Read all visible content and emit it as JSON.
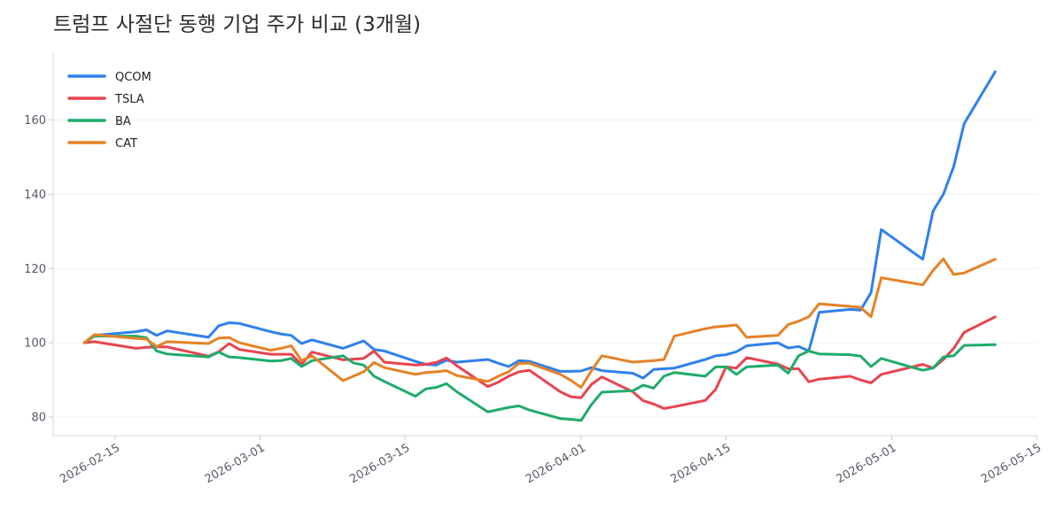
{
  "chart_data": {
    "type": "line",
    "title": "트럼프 사절단 동행 기업 주가 비교 (3개월)",
    "xlabel": "",
    "ylabel": "",
    "x_range": [
      "2026-02-09",
      "2026-05-15"
    ],
    "ylim": [
      75,
      178
    ],
    "yticks": [
      80,
      100,
      120,
      140,
      160
    ],
    "xticks": [
      "2026-02-15",
      "2026-03-01",
      "2026-03-15",
      "2026-04-01",
      "2026-04-15",
      "2026-05-01",
      "2026-05-15"
    ],
    "grid": "horizontal",
    "legend_position": "top-left",
    "series": [
      {
        "name": "QCOM",
        "color": "#2f80ed",
        "points": [
          [
            "2026-02-12",
            100.0
          ],
          [
            "2026-02-13",
            102.0
          ],
          [
            "2026-02-17",
            103.0
          ],
          [
            "2026-02-18",
            103.5
          ],
          [
            "2026-02-19",
            102.0
          ],
          [
            "2026-02-20",
            103.2
          ],
          [
            "2026-02-24",
            101.5
          ],
          [
            "2026-02-25",
            104.6
          ],
          [
            "2026-02-26",
            105.4
          ],
          [
            "2026-02-27",
            105.2
          ],
          [
            "2026-03-02",
            103.0
          ],
          [
            "2026-03-03",
            102.4
          ],
          [
            "2026-03-04",
            102.0
          ],
          [
            "2026-03-05",
            99.8
          ],
          [
            "2026-03-06",
            100.8
          ],
          [
            "2026-03-09",
            98.5
          ],
          [
            "2026-03-10",
            99.5
          ],
          [
            "2026-03-11",
            100.5
          ],
          [
            "2026-03-12",
            98.2
          ],
          [
            "2026-03-13",
            97.8
          ],
          [
            "2026-03-16",
            95.0
          ],
          [
            "2026-03-17",
            94.2
          ],
          [
            "2026-03-18",
            94.0
          ],
          [
            "2026-03-19",
            95.3
          ],
          [
            "2026-03-20",
            94.8
          ],
          [
            "2026-03-23",
            95.5
          ],
          [
            "2026-03-24",
            94.5
          ],
          [
            "2026-03-25",
            93.6
          ],
          [
            "2026-03-26",
            95.2
          ],
          [
            "2026-03-27",
            95.0
          ],
          [
            "2026-03-30",
            92.3
          ],
          [
            "2026-03-31",
            92.3
          ],
          [
            "2026-04-01",
            92.4
          ],
          [
            "2026-04-02",
            93.3
          ],
          [
            "2026-04-03",
            92.5
          ],
          [
            "2026-04-06",
            91.8
          ],
          [
            "2026-04-07",
            90.5
          ],
          [
            "2026-04-08",
            92.8
          ],
          [
            "2026-04-09",
            93.0
          ],
          [
            "2026-04-10",
            93.2
          ],
          [
            "2026-04-13",
            95.5
          ],
          [
            "2026-04-14",
            96.5
          ],
          [
            "2026-04-15",
            96.8
          ],
          [
            "2026-04-16",
            97.6
          ],
          [
            "2026-04-17",
            99.2
          ],
          [
            "2026-04-20",
            100.0
          ],
          [
            "2026-04-21",
            98.6
          ],
          [
            "2026-04-22",
            99.0
          ],
          [
            "2026-04-23",
            97.8
          ],
          [
            "2026-04-24",
            108.2
          ],
          [
            "2026-04-27",
            109.0
          ],
          [
            "2026-04-28",
            108.8
          ],
          [
            "2026-04-29",
            113.5
          ],
          [
            "2026-04-30",
            130.5
          ],
          [
            "2026-05-04",
            122.5
          ],
          [
            "2026-05-05",
            135.5
          ],
          [
            "2026-05-06",
            140.0
          ],
          [
            "2026-05-07",
            147.5
          ],
          [
            "2026-05-08",
            159.0
          ],
          [
            "2026-05-11",
            173.0
          ]
        ]
      },
      {
        "name": "TSLA",
        "color": "#e74450",
        "points": [
          [
            "2026-02-12",
            100.0
          ],
          [
            "2026-02-13",
            100.3
          ],
          [
            "2026-02-17",
            98.5
          ],
          [
            "2026-02-18",
            98.8
          ],
          [
            "2026-02-19",
            98.9
          ],
          [
            "2026-02-20",
            98.9
          ],
          [
            "2026-02-24",
            96.4
          ],
          [
            "2026-02-25",
            97.6
          ],
          [
            "2026-02-26",
            99.8
          ],
          [
            "2026-02-27",
            98.2
          ],
          [
            "2026-03-02",
            96.9
          ],
          [
            "2026-03-03",
            96.9
          ],
          [
            "2026-03-04",
            96.9
          ],
          [
            "2026-03-05",
            94.2
          ],
          [
            "2026-03-06",
            97.5
          ],
          [
            "2026-03-09",
            95.4
          ],
          [
            "2026-03-10",
            95.6
          ],
          [
            "2026-03-11",
            95.8
          ],
          [
            "2026-03-12",
            97.8
          ],
          [
            "2026-03-13",
            94.8
          ],
          [
            "2026-03-16",
            94.0
          ],
          [
            "2026-03-17",
            94.2
          ],
          [
            "2026-03-18",
            94.7
          ],
          [
            "2026-03-19",
            95.9
          ],
          [
            "2026-03-20",
            93.8
          ],
          [
            "2026-03-23",
            88.2
          ],
          [
            "2026-03-24",
            89.4
          ],
          [
            "2026-03-25",
            91.0
          ],
          [
            "2026-03-26",
            92.2
          ],
          [
            "2026-03-27",
            92.6
          ],
          [
            "2026-03-30",
            86.8
          ],
          [
            "2026-03-31",
            85.5
          ],
          [
            "2026-04-01",
            85.2
          ],
          [
            "2026-04-02",
            88.8
          ],
          [
            "2026-04-03",
            90.8
          ],
          [
            "2026-04-06",
            86.8
          ],
          [
            "2026-04-07",
            84.4
          ],
          [
            "2026-04-08",
            83.5
          ],
          [
            "2026-04-09",
            82.3
          ],
          [
            "2026-04-10",
            82.8
          ],
          [
            "2026-04-13",
            84.5
          ],
          [
            "2026-04-14",
            87.5
          ],
          [
            "2026-04-15",
            93.5
          ],
          [
            "2026-04-16",
            93.2
          ],
          [
            "2026-04-17",
            96.0
          ],
          [
            "2026-04-20",
            94.3
          ],
          [
            "2026-04-21",
            93.0
          ],
          [
            "2026-04-22",
            93.0
          ],
          [
            "2026-04-23",
            89.5
          ],
          [
            "2026-04-24",
            90.2
          ],
          [
            "2026-04-27",
            91.0
          ],
          [
            "2026-04-28",
            90.0
          ],
          [
            "2026-04-29",
            89.2
          ],
          [
            "2026-04-30",
            91.5
          ],
          [
            "2026-05-04",
            94.2
          ],
          [
            "2026-05-05",
            93.2
          ],
          [
            "2026-05-06",
            95.5
          ],
          [
            "2026-05-07",
            98.5
          ],
          [
            "2026-05-08",
            102.8
          ],
          [
            "2026-05-11",
            107.0
          ]
        ]
      },
      {
        "name": "BA",
        "color": "#1fab6b",
        "points": [
          [
            "2026-02-12",
            100.0
          ],
          [
            "2026-02-13",
            101.8
          ],
          [
            "2026-02-17",
            101.8
          ],
          [
            "2026-02-18",
            101.4
          ],
          [
            "2026-02-19",
            97.8
          ],
          [
            "2026-02-20",
            97.0
          ],
          [
            "2026-02-24",
            96.2
          ],
          [
            "2026-02-25",
            97.5
          ],
          [
            "2026-02-26",
            96.2
          ],
          [
            "2026-02-27",
            96.0
          ],
          [
            "2026-03-02",
            95.1
          ],
          [
            "2026-03-03",
            95.2
          ],
          [
            "2026-03-04",
            95.8
          ],
          [
            "2026-03-05",
            93.6
          ],
          [
            "2026-03-06",
            95.2
          ],
          [
            "2026-03-09",
            96.5
          ],
          [
            "2026-03-10",
            94.6
          ],
          [
            "2026-03-11",
            94.0
          ],
          [
            "2026-03-12",
            91.0
          ],
          [
            "2026-03-13",
            89.6
          ],
          [
            "2026-03-16",
            85.6
          ],
          [
            "2026-03-17",
            87.6
          ],
          [
            "2026-03-18",
            88.0
          ],
          [
            "2026-03-19",
            89.0
          ],
          [
            "2026-03-20",
            86.8
          ],
          [
            "2026-03-23",
            81.4
          ],
          [
            "2026-03-24",
            82.0
          ],
          [
            "2026-03-25",
            82.6
          ],
          [
            "2026-03-26",
            83.0
          ],
          [
            "2026-03-27",
            81.9
          ],
          [
            "2026-03-30",
            79.6
          ],
          [
            "2026-03-31",
            79.4
          ],
          [
            "2026-04-01",
            79.1
          ],
          [
            "2026-04-02",
            83.4
          ],
          [
            "2026-04-03",
            86.7
          ],
          [
            "2026-04-06",
            87.1
          ],
          [
            "2026-04-07",
            88.6
          ],
          [
            "2026-04-08",
            87.8
          ],
          [
            "2026-04-09",
            91.0
          ],
          [
            "2026-04-10",
            92.0
          ],
          [
            "2026-04-13",
            91.0
          ],
          [
            "2026-04-14",
            93.5
          ],
          [
            "2026-04-15",
            93.5
          ],
          [
            "2026-04-16",
            91.5
          ],
          [
            "2026-04-17",
            93.5
          ],
          [
            "2026-04-20",
            94.0
          ],
          [
            "2026-04-21",
            91.8
          ],
          [
            "2026-04-22",
            96.5
          ],
          [
            "2026-04-23",
            97.8
          ],
          [
            "2026-04-24",
            97.0
          ],
          [
            "2026-04-27",
            96.8
          ],
          [
            "2026-04-28",
            96.4
          ],
          [
            "2026-04-29",
            93.6
          ],
          [
            "2026-04-30",
            95.8
          ],
          [
            "2026-05-04",
            92.6
          ],
          [
            "2026-05-05",
            93.2
          ],
          [
            "2026-05-06",
            96.2
          ],
          [
            "2026-05-07",
            96.5
          ],
          [
            "2026-05-08",
            99.3
          ],
          [
            "2026-05-11",
            99.5
          ]
        ]
      },
      {
        "name": "CAT",
        "color": "#e58226",
        "points": [
          [
            "2026-02-12",
            100.0
          ],
          [
            "2026-02-13",
            102.2
          ],
          [
            "2026-02-17",
            101.2
          ],
          [
            "2026-02-18",
            101.0
          ],
          [
            "2026-02-19",
            99.0
          ],
          [
            "2026-02-20",
            100.3
          ],
          [
            "2026-02-24",
            99.8
          ],
          [
            "2026-02-25",
            101.3
          ],
          [
            "2026-02-26",
            101.4
          ],
          [
            "2026-02-27",
            100.0
          ],
          [
            "2026-03-02",
            98.0
          ],
          [
            "2026-03-03",
            98.5
          ],
          [
            "2026-03-04",
            99.2
          ],
          [
            "2026-03-05",
            95.2
          ],
          [
            "2026-03-06",
            96.5
          ],
          [
            "2026-03-09",
            89.8
          ],
          [
            "2026-03-10",
            91.0
          ],
          [
            "2026-03-11",
            92.2
          ],
          [
            "2026-03-12",
            94.7
          ],
          [
            "2026-03-13",
            93.3
          ],
          [
            "2026-03-16",
            91.5
          ],
          [
            "2026-03-17",
            92.0
          ],
          [
            "2026-03-18",
            92.2
          ],
          [
            "2026-03-19",
            92.5
          ],
          [
            "2026-03-20",
            91.2
          ],
          [
            "2026-03-23",
            89.6
          ],
          [
            "2026-03-24",
            91.0
          ],
          [
            "2026-03-25",
            92.2
          ],
          [
            "2026-03-26",
            94.5
          ],
          [
            "2026-03-27",
            94.5
          ],
          [
            "2026-03-30",
            91.5
          ],
          [
            "2026-03-31",
            89.9
          ],
          [
            "2026-04-01",
            88.0
          ],
          [
            "2026-04-02",
            92.5
          ],
          [
            "2026-04-03",
            96.5
          ],
          [
            "2026-04-06",
            94.8
          ],
          [
            "2026-04-07",
            95.0
          ],
          [
            "2026-04-08",
            95.2
          ],
          [
            "2026-04-09",
            95.5
          ],
          [
            "2026-04-10",
            101.8
          ],
          [
            "2026-04-13",
            103.8
          ],
          [
            "2026-04-14",
            104.3
          ],
          [
            "2026-04-15",
            104.5
          ],
          [
            "2026-04-16",
            104.8
          ],
          [
            "2026-04-17",
            101.5
          ],
          [
            "2026-04-20",
            102.0
          ],
          [
            "2026-04-21",
            104.9
          ],
          [
            "2026-04-22",
            105.8
          ],
          [
            "2026-04-23",
            107.0
          ],
          [
            "2026-04-24",
            110.5
          ],
          [
            "2026-04-27",
            109.8
          ],
          [
            "2026-04-28",
            109.5
          ],
          [
            "2026-04-29",
            107.0
          ],
          [
            "2026-04-30",
            117.5
          ],
          [
            "2026-05-04",
            115.6
          ],
          [
            "2026-05-05",
            119.5
          ],
          [
            "2026-05-06",
            122.6
          ],
          [
            "2026-05-07",
            118.4
          ],
          [
            "2026-05-08",
            118.8
          ],
          [
            "2026-05-11",
            122.5
          ]
        ]
      }
    ]
  }
}
